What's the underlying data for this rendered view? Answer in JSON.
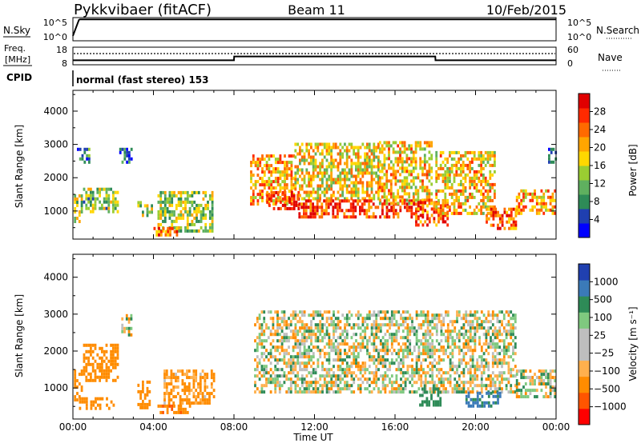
{
  "header": {
    "station": "Pykkvibaer (fitACF)",
    "beam": "Beam 11",
    "date": "10/Feb/2015"
  },
  "panels": {
    "nsky_label": "N.Sky",
    "nsky_ticks": [
      "10^5",
      "10^0"
    ],
    "nsearch_label": "N.Search",
    "nsearch_ticks": [
      "10^5",
      "10^0"
    ],
    "freq_label_1": "Freq.",
    "freq_label_2": "[MHz]",
    "freq_ticks": [
      "18",
      "8"
    ],
    "nave_label": "Nave",
    "nave_ticks": [
      "60",
      "0"
    ],
    "cpid_label": "CPID",
    "cpid_value": "normal (fast stereo) 153"
  },
  "colors": {
    "power": [
      "#0000ff",
      "#1f3fb0",
      "#2e8b57",
      "#5fb05f",
      "#9acd32",
      "#ffd700",
      "#ffa500",
      "#ff6a00",
      "#ff2a00",
      "#e00000"
    ],
    "velocity": [
      "#ff0000",
      "#ff5500",
      "#ff8c00",
      "#ffb04d",
      "#bebebe",
      "#bebebe",
      "#7fc97f",
      "#2e8b57",
      "#3b7ab8",
      "#2040b0"
    ],
    "ground_scatter": "#bebebe"
  },
  "chart_data": [
    {
      "type": "heatmap",
      "name": "power",
      "ylabel": "Slant Range [km]",
      "yticks": [
        "4000",
        "3000",
        "2000",
        "1000"
      ],
      "ylim": [
        180,
        4600
      ],
      "colorbar_label": "Power [dB]",
      "colorbar_ticks": [
        "28",
        "24",
        "20",
        "16",
        "12",
        "8",
        "4"
      ],
      "clim": [
        0,
        30
      ],
      "blocks": [
        {
          "t": [
            0.05,
            0.45
          ],
          "r": [
            650,
            1500
          ],
          "v": 14
        },
        {
          "t": [
            0.5,
            2.2
          ],
          "r": [
            950,
            1700
          ],
          "v": 12
        },
        {
          "t": [
            0.2,
            0.8
          ],
          "r": [
            2500,
            2900
          ],
          "v": 6
        },
        {
          "t": [
            2.3,
            2.9
          ],
          "r": [
            2500,
            2900
          ],
          "v": 5
        },
        {
          "t": [
            3.2,
            3.9
          ],
          "r": [
            900,
            1300
          ],
          "v": 14
        },
        {
          "t": [
            4.2,
            6.9
          ],
          "r": [
            400,
            1600
          ],
          "v": 13
        },
        {
          "t": [
            4.0,
            5.2
          ],
          "r": [
            320,
            520
          ],
          "v": 22
        },
        {
          "t": [
            8.8,
            11.0
          ],
          "r": [
            1200,
            2700
          ],
          "v": 20
        },
        {
          "t": [
            9.6,
            11.2
          ],
          "r": [
            1100,
            1600
          ],
          "v": 27
        },
        {
          "t": [
            11.0,
            15.2
          ],
          "r": [
            1400,
            3050
          ],
          "v": 17
        },
        {
          "t": [
            11.2,
            17.5
          ],
          "r": [
            850,
            1350
          ],
          "v": 26
        },
        {
          "t": [
            15.2,
            17.8
          ],
          "r": [
            1200,
            3100
          ],
          "v": 18
        },
        {
          "t": [
            17.0,
            18.6
          ],
          "r": [
            550,
            1300
          ],
          "v": 24
        },
        {
          "t": [
            18.0,
            21.0
          ],
          "r": [
            900,
            2800
          ],
          "v": 18
        },
        {
          "t": [
            20.5,
            22.0
          ],
          "r": [
            480,
            1100
          ],
          "v": 23
        },
        {
          "t": [
            22.0,
            24.0
          ],
          "r": [
            900,
            1650
          ],
          "v": 20
        },
        {
          "t": [
            23.6,
            24.0
          ],
          "r": [
            2500,
            2900
          ],
          "v": 7
        }
      ]
    },
    {
      "type": "heatmap",
      "name": "velocity",
      "ylabel": "Slant Range [km]",
      "yticks": [
        "4000",
        "3000",
        "2000",
        "1000"
      ],
      "ylim": [
        180,
        4600
      ],
      "xlabel": "Time UT",
      "xticks": [
        "00:00",
        "04:00",
        "08:00",
        "12:00",
        "16:00",
        "20:00",
        "00:00"
      ],
      "xlim": [
        0,
        24
      ],
      "colorbar_label": "Velocity [m s⁻¹]",
      "colorbar_ticks": [
        "1000",
        "500",
        "100",
        "25",
        "−25",
        "−100",
        "−500",
        "−1000"
      ],
      "clim": [
        -1200,
        1200
      ],
      "blocks": [
        {
          "t": [
            0.05,
            0.45
          ],
          "r": [
            700,
            1500
          ],
          "v": -250
        },
        {
          "t": [
            0.5,
            2.2
          ],
          "r": [
            1200,
            2200
          ],
          "v": -300
        },
        {
          "t": [
            2.4,
            2.9
          ],
          "r": [
            2400,
            3000
          ],
          "v": 0
        },
        {
          "t": [
            0.3,
            2.0
          ],
          "r": [
            450,
            750
          ],
          "v": -250
        },
        {
          "t": [
            3.2,
            3.8
          ],
          "r": [
            500,
            1200
          ],
          "v": -300
        },
        {
          "t": [
            4.2,
            5.8
          ],
          "r": [
            350,
            550
          ],
          "v": -400
        },
        {
          "t": [
            4.5,
            7.0
          ],
          "r": [
            600,
            1500
          ],
          "v": -150
        },
        {
          "t": [
            9.0,
            22.0
          ],
          "r": [
            900,
            3100
          ],
          "v": 0
        },
        {
          "t": [
            17.2,
            18.3
          ],
          "r": [
            550,
            1100
          ],
          "v": 300
        },
        {
          "t": [
            19.5,
            21.2
          ],
          "r": [
            500,
            900
          ],
          "v": 600
        },
        {
          "t": [
            22.0,
            24.0
          ],
          "r": [
            800,
            1500
          ],
          "v": 0
        }
      ]
    },
    {
      "type": "line",
      "name": "nsky",
      "x": [
        0,
        0.3,
        0.35,
        3,
        8,
        12,
        16,
        20,
        24
      ],
      "y": [
        10,
        70000,
        90000,
        90000,
        90000,
        90000,
        90000,
        90000,
        90000
      ],
      "ylim": [
        1,
        100000
      ]
    },
    {
      "type": "line",
      "name": "frequency",
      "x": [
        0,
        8,
        8.01,
        18,
        18.01,
        24
      ],
      "y": [
        10.3,
        10.3,
        12.7,
        12.7,
        10.3,
        10.3
      ],
      "ylim": [
        8,
        18
      ]
    },
    {
      "type": "line",
      "name": "nave",
      "x": [
        0,
        24
      ],
      "y": [
        40,
        40
      ],
      "ylim": [
        0,
        60
      ]
    }
  ]
}
